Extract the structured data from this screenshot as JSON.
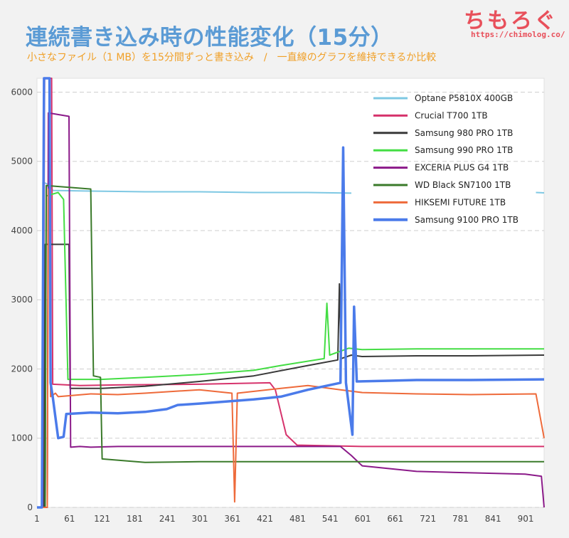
{
  "header": {
    "title": "連続書き込み時の性能変化（15分）",
    "subtitle": "小さなファイル（1 MB）を15分間ずっと書き込み　/　一直線のグラフを維持できるか比較"
  },
  "logo": {
    "text": "ちもろぐ",
    "url": "https://chimolog.co/"
  },
  "chart_data": {
    "type": "line",
    "xlim": [
      1,
      935
    ],
    "ylim": [
      0,
      6200
    ],
    "x_ticks": [
      "1",
      "61",
      "121",
      "181",
      "241",
      "301",
      "361",
      "421",
      "481",
      "541",
      "601",
      "661",
      "721",
      "781",
      "841",
      "901"
    ],
    "y_ticks": [
      "0",
      "1000",
      "2000",
      "3000",
      "4000",
      "5000",
      "6000"
    ],
    "grid": "horizontal-dashed",
    "legend_position": "top-right",
    "series": [
      {
        "name": "Optane P5810X 400GB",
        "color": "#7ec8e3",
        "width": 2,
        "points": [
          [
            1,
            0
          ],
          [
            10,
            0
          ],
          [
            12,
            4700
          ],
          [
            26,
            4650
          ],
          [
            30,
            4580
          ],
          [
            100,
            4570
          ],
          [
            200,
            4560
          ],
          [
            300,
            4560
          ],
          [
            400,
            4550
          ],
          [
            500,
            4550
          ],
          [
            580,
            4540
          ],
          [
            581,
            null
          ],
          [
            920,
            4550
          ],
          [
            935,
            4545
          ]
        ]
      },
      {
        "name": "Crucial T700 1TB",
        "color": "#d6336c",
        "width": 2,
        "points": [
          [
            1,
            0
          ],
          [
            12,
            0
          ],
          [
            15,
            6200
          ],
          [
            28,
            6200
          ],
          [
            30,
            1780
          ],
          [
            80,
            1760
          ],
          [
            150,
            1770
          ],
          [
            300,
            1780
          ],
          [
            430,
            1800
          ],
          [
            440,
            1700
          ],
          [
            460,
            1050
          ],
          [
            480,
            900
          ],
          [
            600,
            880
          ],
          [
            935,
            880
          ]
        ]
      },
      {
        "name": "Samsung 980 PRO 1TB",
        "color": "#3a3a3a",
        "width": 2,
        "points": [
          [
            1,
            0
          ],
          [
            14,
            0
          ],
          [
            16,
            3800
          ],
          [
            60,
            3800
          ],
          [
            62,
            1720
          ],
          [
            120,
            1720
          ],
          [
            200,
            1750
          ],
          [
            300,
            1820
          ],
          [
            400,
            1900
          ],
          [
            500,
            2050
          ],
          [
            555,
            2130
          ],
          [
            558,
            3230
          ],
          [
            561,
            2150
          ],
          [
            580,
            2200
          ],
          [
            600,
            2180
          ],
          [
            700,
            2190
          ],
          [
            800,
            2190
          ],
          [
            935,
            2200
          ]
        ]
      },
      {
        "name": "Samsung 990 PRO 1TB",
        "color": "#44dd44",
        "width": 2,
        "points": [
          [
            1,
            0
          ],
          [
            16,
            0
          ],
          [
            18,
            4500
          ],
          [
            40,
            4550
          ],
          [
            50,
            4450
          ],
          [
            58,
            1850
          ],
          [
            120,
            1850
          ],
          [
            200,
            1880
          ],
          [
            300,
            1920
          ],
          [
            400,
            1980
          ],
          [
            450,
            2050
          ],
          [
            530,
            2150
          ],
          [
            535,
            2950
          ],
          [
            540,
            2200
          ],
          [
            575,
            2300
          ],
          [
            600,
            2280
          ],
          [
            700,
            2290
          ],
          [
            800,
            2290
          ],
          [
            935,
            2290
          ]
        ]
      },
      {
        "name": "EXCERIA PLUS G4 1TB",
        "color": "#8b1a89",
        "width": 2,
        "points": [
          [
            1,
            0
          ],
          [
            20,
            0
          ],
          [
            22,
            5700
          ],
          [
            60,
            5650
          ],
          [
            63,
            870
          ],
          [
            80,
            880
          ],
          [
            100,
            870
          ],
          [
            150,
            880
          ],
          [
            300,
            880
          ],
          [
            450,
            880
          ],
          [
            560,
            880
          ],
          [
            580,
            750
          ],
          [
            600,
            600
          ],
          [
            700,
            520
          ],
          [
            800,
            500
          ],
          [
            900,
            480
          ],
          [
            930,
            450
          ],
          [
            935,
            0
          ]
        ]
      },
      {
        "name": "WD Black SN7100 1TB",
        "color": "#3a7a2a",
        "width": 2,
        "points": [
          [
            1,
            0
          ],
          [
            16,
            0
          ],
          [
            18,
            4650
          ],
          [
            100,
            4600
          ],
          [
            105,
            1900
          ],
          [
            118,
            1880
          ],
          [
            121,
            700
          ],
          [
            200,
            650
          ],
          [
            300,
            660
          ],
          [
            400,
            660
          ],
          [
            500,
            660
          ],
          [
            600,
            660
          ],
          [
            700,
            660
          ],
          [
            800,
            660
          ],
          [
            935,
            660
          ]
        ]
      },
      {
        "name": "HIKSEMI FUTURE 1TB",
        "color": "#ee6a3a",
        "width": 2,
        "points": [
          [
            1,
            0
          ],
          [
            20,
            0
          ],
          [
            22,
            4600
          ],
          [
            25,
            4580
          ],
          [
            26,
            1600
          ],
          [
            35,
            1650
          ],
          [
            40,
            1600
          ],
          [
            100,
            1640
          ],
          [
            150,
            1630
          ],
          [
            200,
            1650
          ],
          [
            300,
            1700
          ],
          [
            360,
            1650
          ],
          [
            365,
            80
          ],
          [
            370,
            1650
          ],
          [
            450,
            1720
          ],
          [
            500,
            1760
          ],
          [
            560,
            1700
          ],
          [
            600,
            1660
          ],
          [
            700,
            1640
          ],
          [
            800,
            1630
          ],
          [
            920,
            1640
          ],
          [
            935,
            1000
          ]
        ]
      },
      {
        "name": "Samsung 9100 PRO 1TB",
        "color": "#4b7bea",
        "width": 3.5,
        "points": [
          [
            1,
            0
          ],
          [
            10,
            0
          ],
          [
            14,
            6200
          ],
          [
            24,
            6200
          ],
          [
            26,
            1800
          ],
          [
            30,
            1600
          ],
          [
            40,
            1000
          ],
          [
            50,
            1020
          ],
          [
            55,
            1350
          ],
          [
            100,
            1370
          ],
          [
            150,
            1360
          ],
          [
            200,
            1380
          ],
          [
            240,
            1420
          ],
          [
            260,
            1480
          ],
          [
            300,
            1500
          ],
          [
            400,
            1560
          ],
          [
            450,
            1600
          ],
          [
            500,
            1700
          ],
          [
            560,
            1800
          ],
          [
            565,
            5200
          ],
          [
            570,
            1800
          ],
          [
            582,
            1050
          ],
          [
            585,
            2900
          ],
          [
            590,
            1820
          ],
          [
            650,
            1830
          ],
          [
            700,
            1840
          ],
          [
            800,
            1840
          ],
          [
            935,
            1850
          ]
        ]
      }
    ]
  }
}
